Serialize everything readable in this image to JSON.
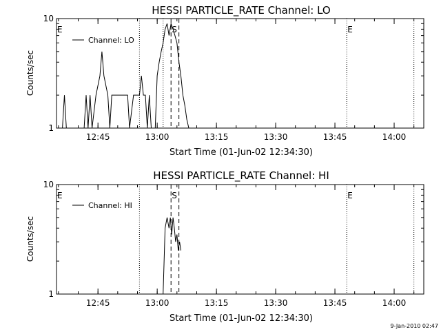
{
  "colors": {
    "background": "#ffffff",
    "foreground": "#000000"
  },
  "footer": {
    "timestamp": "9-Jan-2010 02:47"
  },
  "chart_data": [
    {
      "type": "line",
      "title": "HESSI PARTICLE_RATE Channel: LO",
      "xlabel": "Start Time (01-Jun-02 12:34:30)",
      "ylabel": "Counts/sec",
      "y_scale": "log",
      "ylim": [
        1,
        10
      ],
      "xlim": [
        "12:34:30",
        "14:07:30"
      ],
      "x_ticks": [
        "12:45",
        "13:00",
        "13:15",
        "13:30",
        "13:45",
        "14:00"
      ],
      "y_ticks": [
        "1",
        "10"
      ],
      "legend": {
        "entries": [
          "Channel: LO"
        ],
        "position": "top-left"
      },
      "markers": [
        {
          "time": "12:34:30",
          "label": "E",
          "style": "dotted"
        },
        {
          "time": "12:55:30",
          "label": "",
          "style": "dotted"
        },
        {
          "time": "13:01:30",
          "label": "",
          "style": "dotted"
        },
        {
          "time": "13:03:30",
          "label": "S",
          "style": "dashed"
        },
        {
          "time": "13:05:30",
          "label": "",
          "style": "dashed"
        },
        {
          "time": "13:48:00",
          "label": "E",
          "style": "dotted"
        },
        {
          "time": "14:05:00",
          "label": "",
          "style": "dotted"
        }
      ],
      "series": [
        {
          "name": "Channel: LO",
          "x": [
            "12:36:00",
            "12:36:30",
            "12:37:00",
            "12:41:30",
            "12:42:00",
            "12:42:30",
            "12:43:00",
            "12:43:30",
            "12:44:30",
            "12:45:30",
            "12:46:00",
            "12:46:30",
            "12:47:30",
            "12:48:00",
            "12:48:30",
            "12:49:00",
            "12:52:30",
            "12:53:00",
            "12:54:00",
            "12:55:30",
            "12:56:00",
            "12:56:30",
            "12:57:00",
            "12:57:30",
            "12:58:00",
            "12:58:30",
            "12:59:00",
            "12:59:30",
            "13:00:00",
            "13:00:30",
            "13:01:00",
            "13:01:30",
            "13:02:00",
            "13:02:30",
            "13:03:00",
            "13:03:30",
            "13:04:00",
            "13:04:30",
            "13:05:00",
            "13:05:30",
            "13:06:00",
            "13:06:30",
            "13:07:00",
            "13:07:30",
            "13:08:00"
          ],
          "y": [
            1,
            2,
            1,
            1,
            2,
            1,
            2,
            1,
            2,
            3,
            5,
            3,
            2,
            1,
            2,
            2,
            2,
            1,
            2,
            2,
            3,
            2,
            2,
            1,
            2,
            1,
            1,
            1,
            3,
            4,
            5,
            6,
            8,
            9,
            7,
            9,
            8,
            7,
            6,
            4,
            3,
            2,
            1.6,
            1.2,
            1
          ]
        }
      ]
    },
    {
      "type": "line",
      "title": "HESSI PARTICLE_RATE Channel: HI",
      "xlabel": "Start Time (01-Jun-02 12:34:30)",
      "ylabel": "Counts/sec",
      "y_scale": "log",
      "ylim": [
        1,
        10
      ],
      "xlim": [
        "12:34:30",
        "14:07:30"
      ],
      "x_ticks": [
        "12:45",
        "13:00",
        "13:15",
        "13:30",
        "13:45",
        "14:00"
      ],
      "y_ticks": [
        "1",
        "10"
      ],
      "legend": {
        "entries": [
          "Channel: HI"
        ],
        "position": "top-left"
      },
      "markers": [
        {
          "time": "12:34:30",
          "label": "E",
          "style": "dotted"
        },
        {
          "time": "12:55:30",
          "label": "",
          "style": "dotted"
        },
        {
          "time": "13:03:30",
          "label": "S",
          "style": "dashed"
        },
        {
          "time": "13:05:30",
          "label": "",
          "style": "dashed"
        },
        {
          "time": "13:48:00",
          "label": "E",
          "style": "dotted"
        },
        {
          "time": "14:05:00",
          "label": "",
          "style": "dotted"
        }
      ],
      "series": [
        {
          "name": "Channel: HI",
          "x": [
            "13:01:30",
            "13:02:00",
            "13:02:30",
            "13:03:00",
            "13:03:20",
            "13:03:40",
            "13:04:00",
            "13:04:20",
            "13:04:40",
            "13:05:00",
            "13:05:20",
            "13:05:40",
            "13:06:00"
          ],
          "y": [
            1,
            4,
            5,
            4,
            5,
            3.5,
            5,
            4,
            3,
            3.5,
            2.5,
            3,
            2.5
          ]
        }
      ]
    }
  ]
}
